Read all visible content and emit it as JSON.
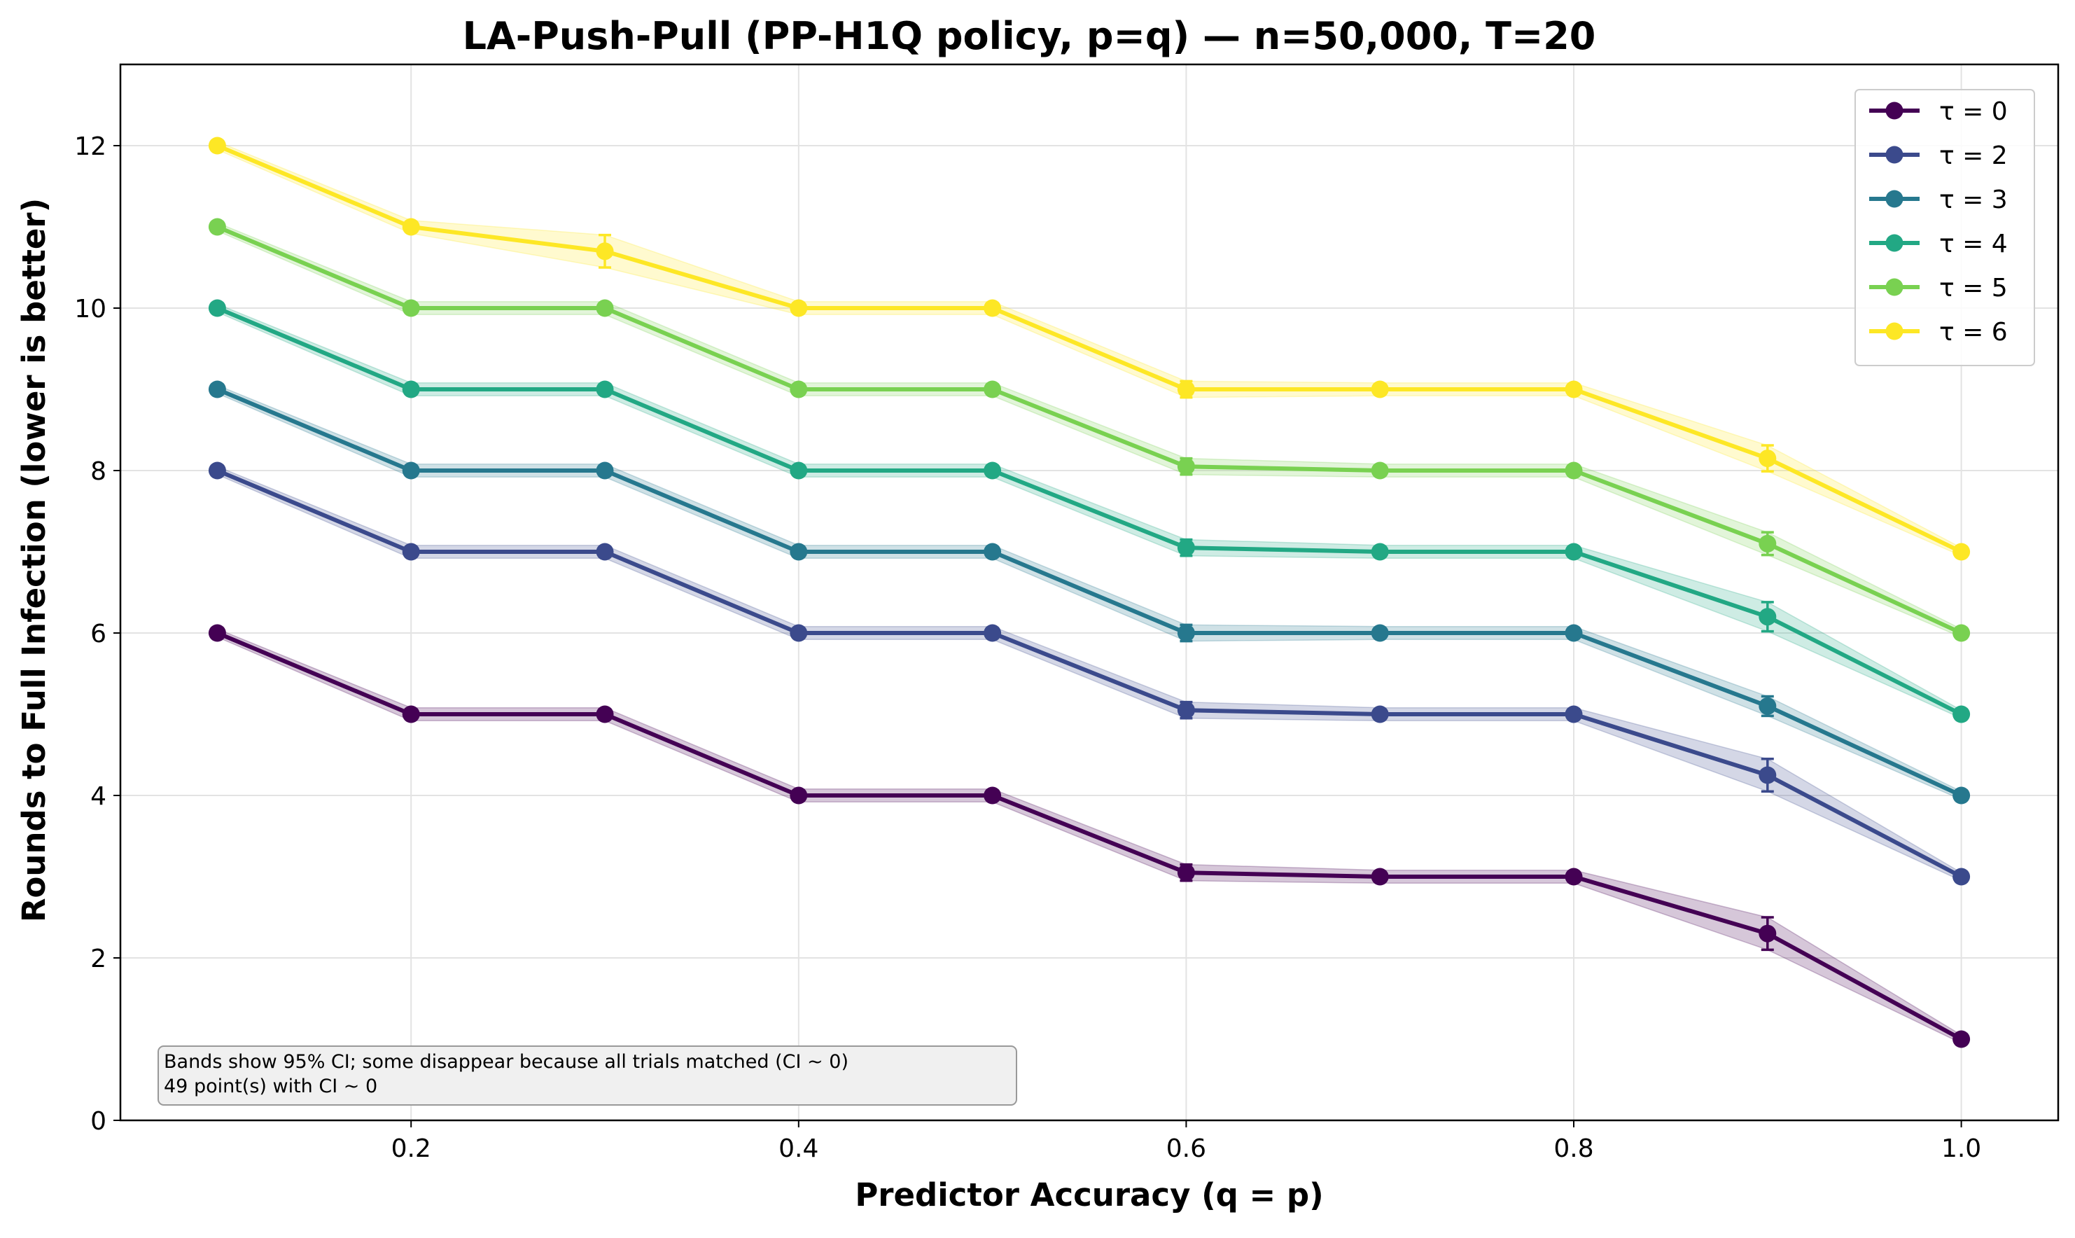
{
  "chart_data": {
    "type": "line",
    "title": "LA-Push-Pull (PP-H1Q policy, p=q) — n=50,000, T=20",
    "xlabel": "Predictor Accuracy (q = p)",
    "ylabel": "Rounds to Full Infection (lower is better)",
    "xlim": [
      0.05,
      1.05
    ],
    "ylim": [
      0,
      13
    ],
    "x_ticks": [
      "0.2",
      "0.4",
      "0.6",
      "0.8",
      "1.0"
    ],
    "y_ticks": [
      "0",
      "2",
      "4",
      "6",
      "8",
      "10",
      "12"
    ],
    "grid": true,
    "legend_position": "top-right",
    "x": [
      0.1,
      0.2,
      0.3,
      0.4,
      0.5,
      0.6,
      0.7,
      0.8,
      0.9,
      1.0
    ],
    "series": [
      {
        "name": "τ = 0",
        "color": "#440154",
        "values": [
          6,
          5,
          5,
          4,
          4,
          3.05,
          3,
          3,
          2.3,
          1
        ],
        "ci": [
          0.05,
          0.08,
          0.08,
          0.08,
          0.08,
          0.1,
          0.08,
          0.08,
          0.2,
          0.05
        ]
      },
      {
        "name": "τ = 2",
        "color": "#3b4a8c",
        "values": [
          8,
          7,
          7,
          6,
          6,
          5.05,
          5,
          5,
          4.25,
          3
        ],
        "ci": [
          0.05,
          0.08,
          0.08,
          0.08,
          0.08,
          0.1,
          0.08,
          0.08,
          0.2,
          0.05
        ]
      },
      {
        "name": "τ = 3",
        "color": "#26788e",
        "values": [
          9,
          8,
          8,
          7,
          7,
          6,
          6,
          6,
          5.1,
          4
        ],
        "ci": [
          0.05,
          0.08,
          0.08,
          0.08,
          0.08,
          0.1,
          0.08,
          0.08,
          0.12,
          0.05
        ]
      },
      {
        "name": "τ = 4",
        "color": "#22a884",
        "values": [
          10,
          9,
          9,
          8,
          8,
          7.05,
          7,
          7,
          6.2,
          5
        ],
        "ci": [
          0.05,
          0.08,
          0.08,
          0.08,
          0.08,
          0.1,
          0.08,
          0.08,
          0.18,
          0.05
        ]
      },
      {
        "name": "τ = 5",
        "color": "#79d151",
        "values": [
          11,
          10,
          10,
          9,
          9,
          8.05,
          8,
          8,
          7.1,
          6
        ],
        "ci": [
          0.05,
          0.08,
          0.08,
          0.08,
          0.08,
          0.1,
          0.08,
          0.08,
          0.14,
          0.05
        ]
      },
      {
        "name": "τ = 6",
        "color": "#fde725",
        "values": [
          12,
          11,
          10.7,
          10,
          10,
          9,
          9,
          9,
          8.15,
          7
        ],
        "ci": [
          0.05,
          0.08,
          0.2,
          0.08,
          0.08,
          0.1,
          0.08,
          0.08,
          0.16,
          0.05
        ]
      }
    ],
    "annotation": {
      "position": "bottom-left",
      "lines": [
        "Bands show 95% CI; some disappear because all trials matched (CI ~ 0)",
        "49 point(s) with CI ~ 0"
      ]
    }
  }
}
